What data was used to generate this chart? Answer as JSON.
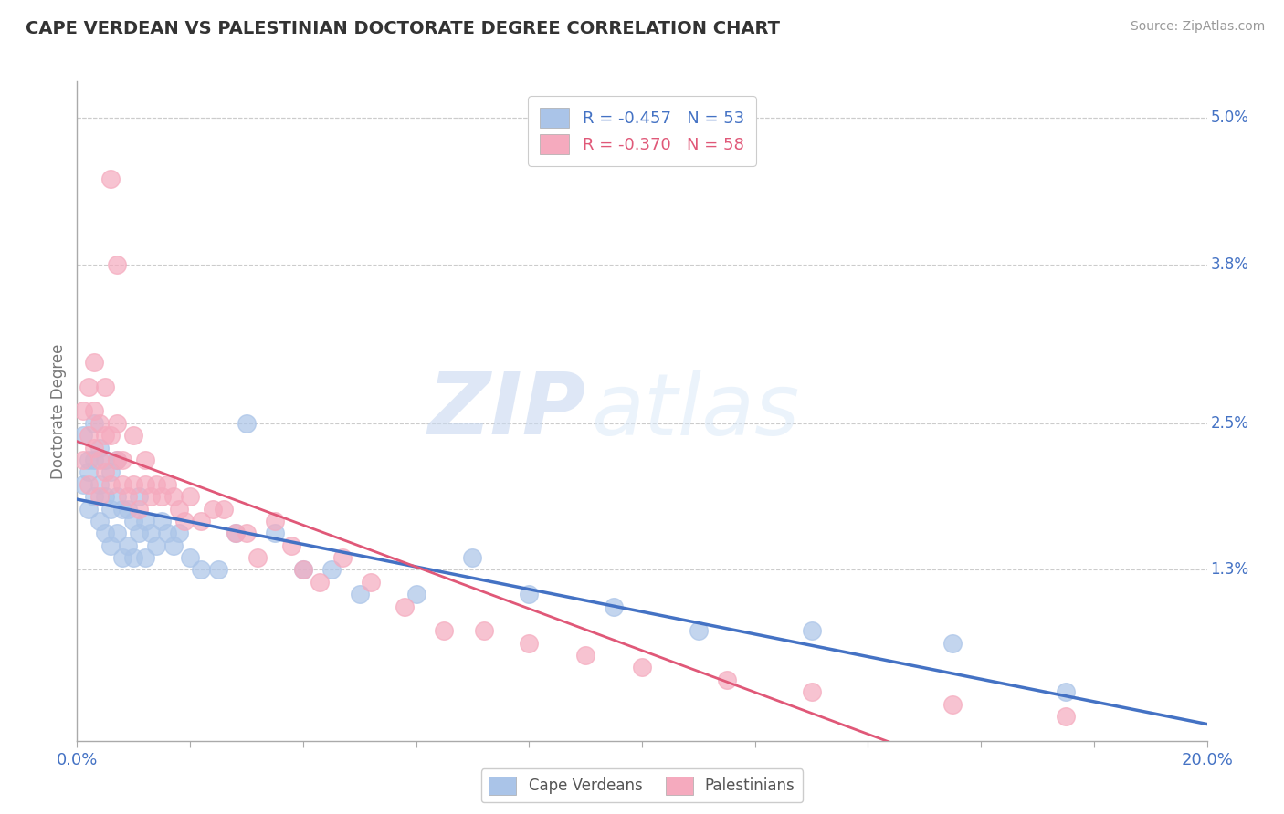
{
  "title": "CAPE VERDEAN VS PALESTINIAN DOCTORATE DEGREE CORRELATION CHART",
  "source_text": "Source: ZipAtlas.com",
  "ylabel": "Doctorate Degree",
  "right_yticks": [
    "5.0%",
    "3.8%",
    "2.5%",
    "1.3%"
  ],
  "right_ytick_vals": [
    0.05,
    0.038,
    0.025,
    0.013
  ],
  "xlim": [
    0.0,
    0.2
  ],
  "ylim": [
    -0.001,
    0.053
  ],
  "legend_blue_r": "R = -0.457",
  "legend_blue_n": "N = 53",
  "legend_pink_r": "R = -0.370",
  "legend_pink_n": "N = 58",
  "legend_blue_label": "Cape Verdeans",
  "legend_pink_label": "Palestinians",
  "blue_color": "#aac4e8",
  "pink_color": "#f5aabe",
  "blue_line_color": "#4472c4",
  "pink_line_color": "#e05878",
  "watermark_zip": "ZIP",
  "watermark_atlas": "atlas",
  "background_color": "#ffffff",
  "grid_color": "#cccccc",
  "blue_scatter_x": [
    0.001,
    0.001,
    0.002,
    0.002,
    0.002,
    0.003,
    0.003,
    0.003,
    0.004,
    0.004,
    0.004,
    0.005,
    0.005,
    0.005,
    0.006,
    0.006,
    0.006,
    0.007,
    0.007,
    0.007,
    0.008,
    0.008,
    0.009,
    0.009,
    0.01,
    0.01,
    0.011,
    0.011,
    0.012,
    0.012,
    0.013,
    0.014,
    0.015,
    0.016,
    0.017,
    0.018,
    0.02,
    0.022,
    0.025,
    0.028,
    0.03,
    0.035,
    0.04,
    0.045,
    0.05,
    0.06,
    0.07,
    0.08,
    0.095,
    0.11,
    0.13,
    0.155,
    0.175
  ],
  "blue_scatter_y": [
    0.02,
    0.024,
    0.022,
    0.018,
    0.021,
    0.019,
    0.022,
    0.025,
    0.02,
    0.017,
    0.023,
    0.016,
    0.019,
    0.022,
    0.015,
    0.018,
    0.021,
    0.016,
    0.019,
    0.022,
    0.014,
    0.018,
    0.015,
    0.018,
    0.014,
    0.017,
    0.016,
    0.019,
    0.014,
    0.017,
    0.016,
    0.015,
    0.017,
    0.016,
    0.015,
    0.016,
    0.014,
    0.013,
    0.013,
    0.016,
    0.025,
    0.016,
    0.013,
    0.013,
    0.011,
    0.011,
    0.014,
    0.011,
    0.01,
    0.008,
    0.008,
    0.007,
    0.003
  ],
  "pink_scatter_x": [
    0.001,
    0.001,
    0.002,
    0.002,
    0.002,
    0.003,
    0.003,
    0.003,
    0.004,
    0.004,
    0.004,
    0.005,
    0.005,
    0.005,
    0.006,
    0.006,
    0.006,
    0.007,
    0.007,
    0.007,
    0.008,
    0.008,
    0.009,
    0.01,
    0.01,
    0.011,
    0.012,
    0.012,
    0.013,
    0.014,
    0.015,
    0.016,
    0.017,
    0.018,
    0.019,
    0.02,
    0.022,
    0.024,
    0.026,
    0.028,
    0.03,
    0.032,
    0.035,
    0.038,
    0.04,
    0.043,
    0.047,
    0.052,
    0.058,
    0.065,
    0.072,
    0.08,
    0.09,
    0.1,
    0.115,
    0.13,
    0.155,
    0.175
  ],
  "pink_scatter_y": [
    0.022,
    0.026,
    0.024,
    0.02,
    0.028,
    0.023,
    0.026,
    0.03,
    0.022,
    0.019,
    0.025,
    0.021,
    0.024,
    0.028,
    0.02,
    0.024,
    0.045,
    0.022,
    0.025,
    0.038,
    0.02,
    0.022,
    0.019,
    0.02,
    0.024,
    0.018,
    0.02,
    0.022,
    0.019,
    0.02,
    0.019,
    0.02,
    0.019,
    0.018,
    0.017,
    0.019,
    0.017,
    0.018,
    0.018,
    0.016,
    0.016,
    0.014,
    0.017,
    0.015,
    0.013,
    0.012,
    0.014,
    0.012,
    0.01,
    0.008,
    0.008,
    0.007,
    0.006,
    0.005,
    0.004,
    0.003,
    0.002,
    0.001
  ]
}
